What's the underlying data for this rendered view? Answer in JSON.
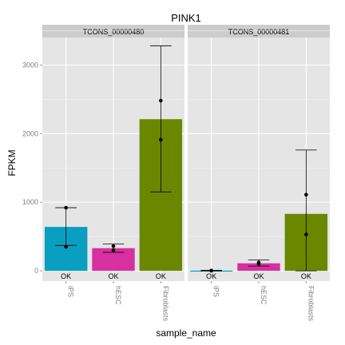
{
  "chart_data": {
    "type": "bar",
    "title": "PINK1",
    "xlabel": "sample_name",
    "ylabel": "FPKM",
    "ylim": [
      -150,
      3400
    ],
    "yticks": [
      0,
      1000,
      2000,
      3000
    ],
    "grid": true,
    "categories": [
      "iPS",
      "hESC",
      "Fibroblasts"
    ],
    "colors": [
      "#0a9ec1",
      "#d7309f",
      "#6b8700"
    ],
    "panels": [
      {
        "name": "TCONS_00000480",
        "values": [
          640,
          330,
          2210
        ],
        "error_low": [
          370,
          270,
          1150
        ],
        "error_high": [
          920,
          390,
          3280
        ],
        "replicates": [
          [
            920,
            350
          ],
          [
            300,
            360
          ],
          [
            2480,
            1910
          ]
        ],
        "status": [
          "OK",
          "OK",
          "OK"
        ]
      },
      {
        "name": "TCONS_00000481",
        "values": [
          3,
          110,
          830
        ],
        "error_low": [
          0,
          70,
          0
        ],
        "error_high": [
          8,
          160,
          1760
        ],
        "replicates": [
          [
            3,
            2
          ],
          [
            120,
            100
          ],
          [
            1110,
            530
          ]
        ],
        "status": [
          "OK",
          "OK",
          "OK"
        ]
      }
    ]
  }
}
